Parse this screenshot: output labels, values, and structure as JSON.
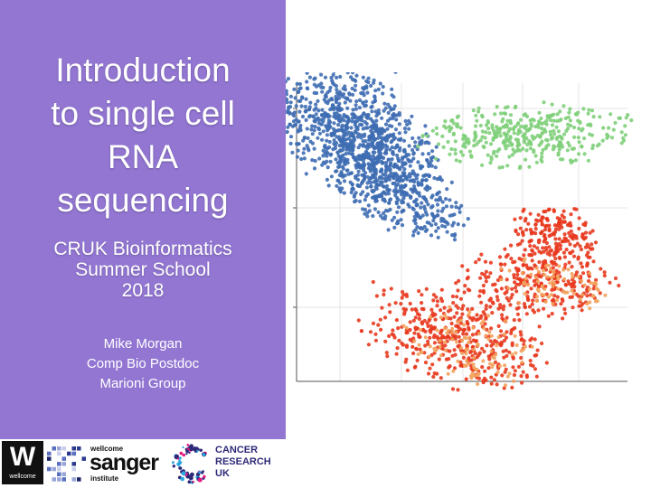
{
  "slide": {
    "title_lines": [
      "Introduction",
      "to single cell",
      "RNA",
      "sequencing"
    ],
    "subtitle_lines": [
      "CRUK Bioinformatics",
      "Summer School",
      "2018"
    ],
    "author_lines": [
      "Mike Morgan",
      "Comp Bio Postdoc",
      "Marioni Group"
    ]
  },
  "logos": {
    "wellcome": {
      "glyph": "W",
      "word": "wellcome"
    },
    "sanger": {
      "top": "wellcome",
      "main": "sanger",
      "bottom": "institute"
    },
    "cruk": {
      "lines": [
        "CANCER",
        "RESEARCH",
        "UK"
      ]
    }
  },
  "colors": {
    "panel": "#9276d2",
    "cluster_blue": "#3e6db3",
    "cluster_green": "#7fcf7a",
    "cluster_red": "#e8391e",
    "cluster_orange": "#f3a25c",
    "cruk_navy": "#2e2a79",
    "cruk_pink": "#e5197f"
  }
}
